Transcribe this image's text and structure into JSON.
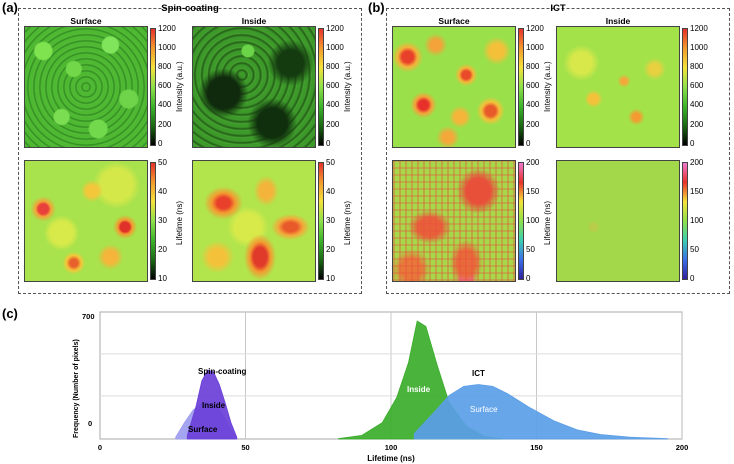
{
  "panel_a": {
    "letter": "(a)",
    "title": "Spin-coating",
    "col_surface": "Surface",
    "col_inside": "Inside",
    "intensity_label": "Intensity (a.u.)",
    "lifetime_label": "Lifetime (ns)",
    "intensity_ticks": [
      "1200",
      "1000",
      "800",
      "600",
      "400",
      "200",
      "0"
    ],
    "lifetime_ticks": [
      "50",
      "40",
      "30",
      "20",
      "10"
    ]
  },
  "panel_b": {
    "letter": "(b)",
    "title": "ICT",
    "col_surface": "Surface",
    "col_inside": "Inside",
    "intensity_label": "Intensity (a.u.)",
    "lifetime_label": "Lifetime (ns)",
    "intensity_ticks": [
      "1200",
      "1000",
      "800",
      "600",
      "400",
      "200",
      "0"
    ],
    "lifetime_ticks": [
      "200",
      "150",
      "100",
      "50",
      "0"
    ]
  },
  "panel_c": {
    "letter": "(c)"
  },
  "chart_data": {
    "type": "area",
    "xlabel": "Lifetime (ns)",
    "ylabel": "Frequency (Number of pixels)",
    "xlim": [
      0,
      200
    ],
    "ylim": [
      0,
      700
    ],
    "x_ticks": [
      "0",
      "50",
      "100",
      "150",
      "200"
    ],
    "y_ticks": [
      "700",
      "0"
    ],
    "grid": true,
    "annotations": [
      "Spin-coating",
      "Inside",
      "Surface",
      "ICT",
      "Inside",
      "Surface"
    ],
    "series": [
      {
        "group": "Spin-coating",
        "name": "Surface",
        "color": "#9c9cf0",
        "x": [
          26,
          29,
          32,
          35,
          37,
          39,
          41,
          43,
          45,
          47
        ],
        "y": [
          10,
          90,
          160,
          195,
          200,
          190,
          160,
          110,
          50,
          5
        ]
      },
      {
        "group": "Spin-coating",
        "name": "Inside",
        "color": "#6a3fd8",
        "x": [
          30,
          33,
          35,
          37,
          39,
          41,
          43,
          45,
          47
        ],
        "y": [
          20,
          180,
          320,
          380,
          370,
          300,
          200,
          90,
          10
        ]
      },
      {
        "group": "ICT",
        "name": "Inside",
        "color": "#3aad2a",
        "x": [
          82,
          90,
          97,
          102,
          106,
          109,
          112,
          116,
          120,
          126,
          132,
          138
        ],
        "y": [
          2,
          20,
          90,
          230,
          420,
          650,
          620,
          400,
          200,
          70,
          15,
          2
        ]
      },
      {
        "group": "ICT",
        "name": "Surface",
        "color": "#5b9ee8",
        "x": [
          108,
          115,
          120,
          125,
          130,
          135,
          140,
          148,
          156,
          164,
          172,
          182,
          195
        ],
        "y": [
          30,
          150,
          240,
          290,
          300,
          290,
          250,
          170,
          100,
          50,
          25,
          10,
          2
        ]
      }
    ]
  }
}
